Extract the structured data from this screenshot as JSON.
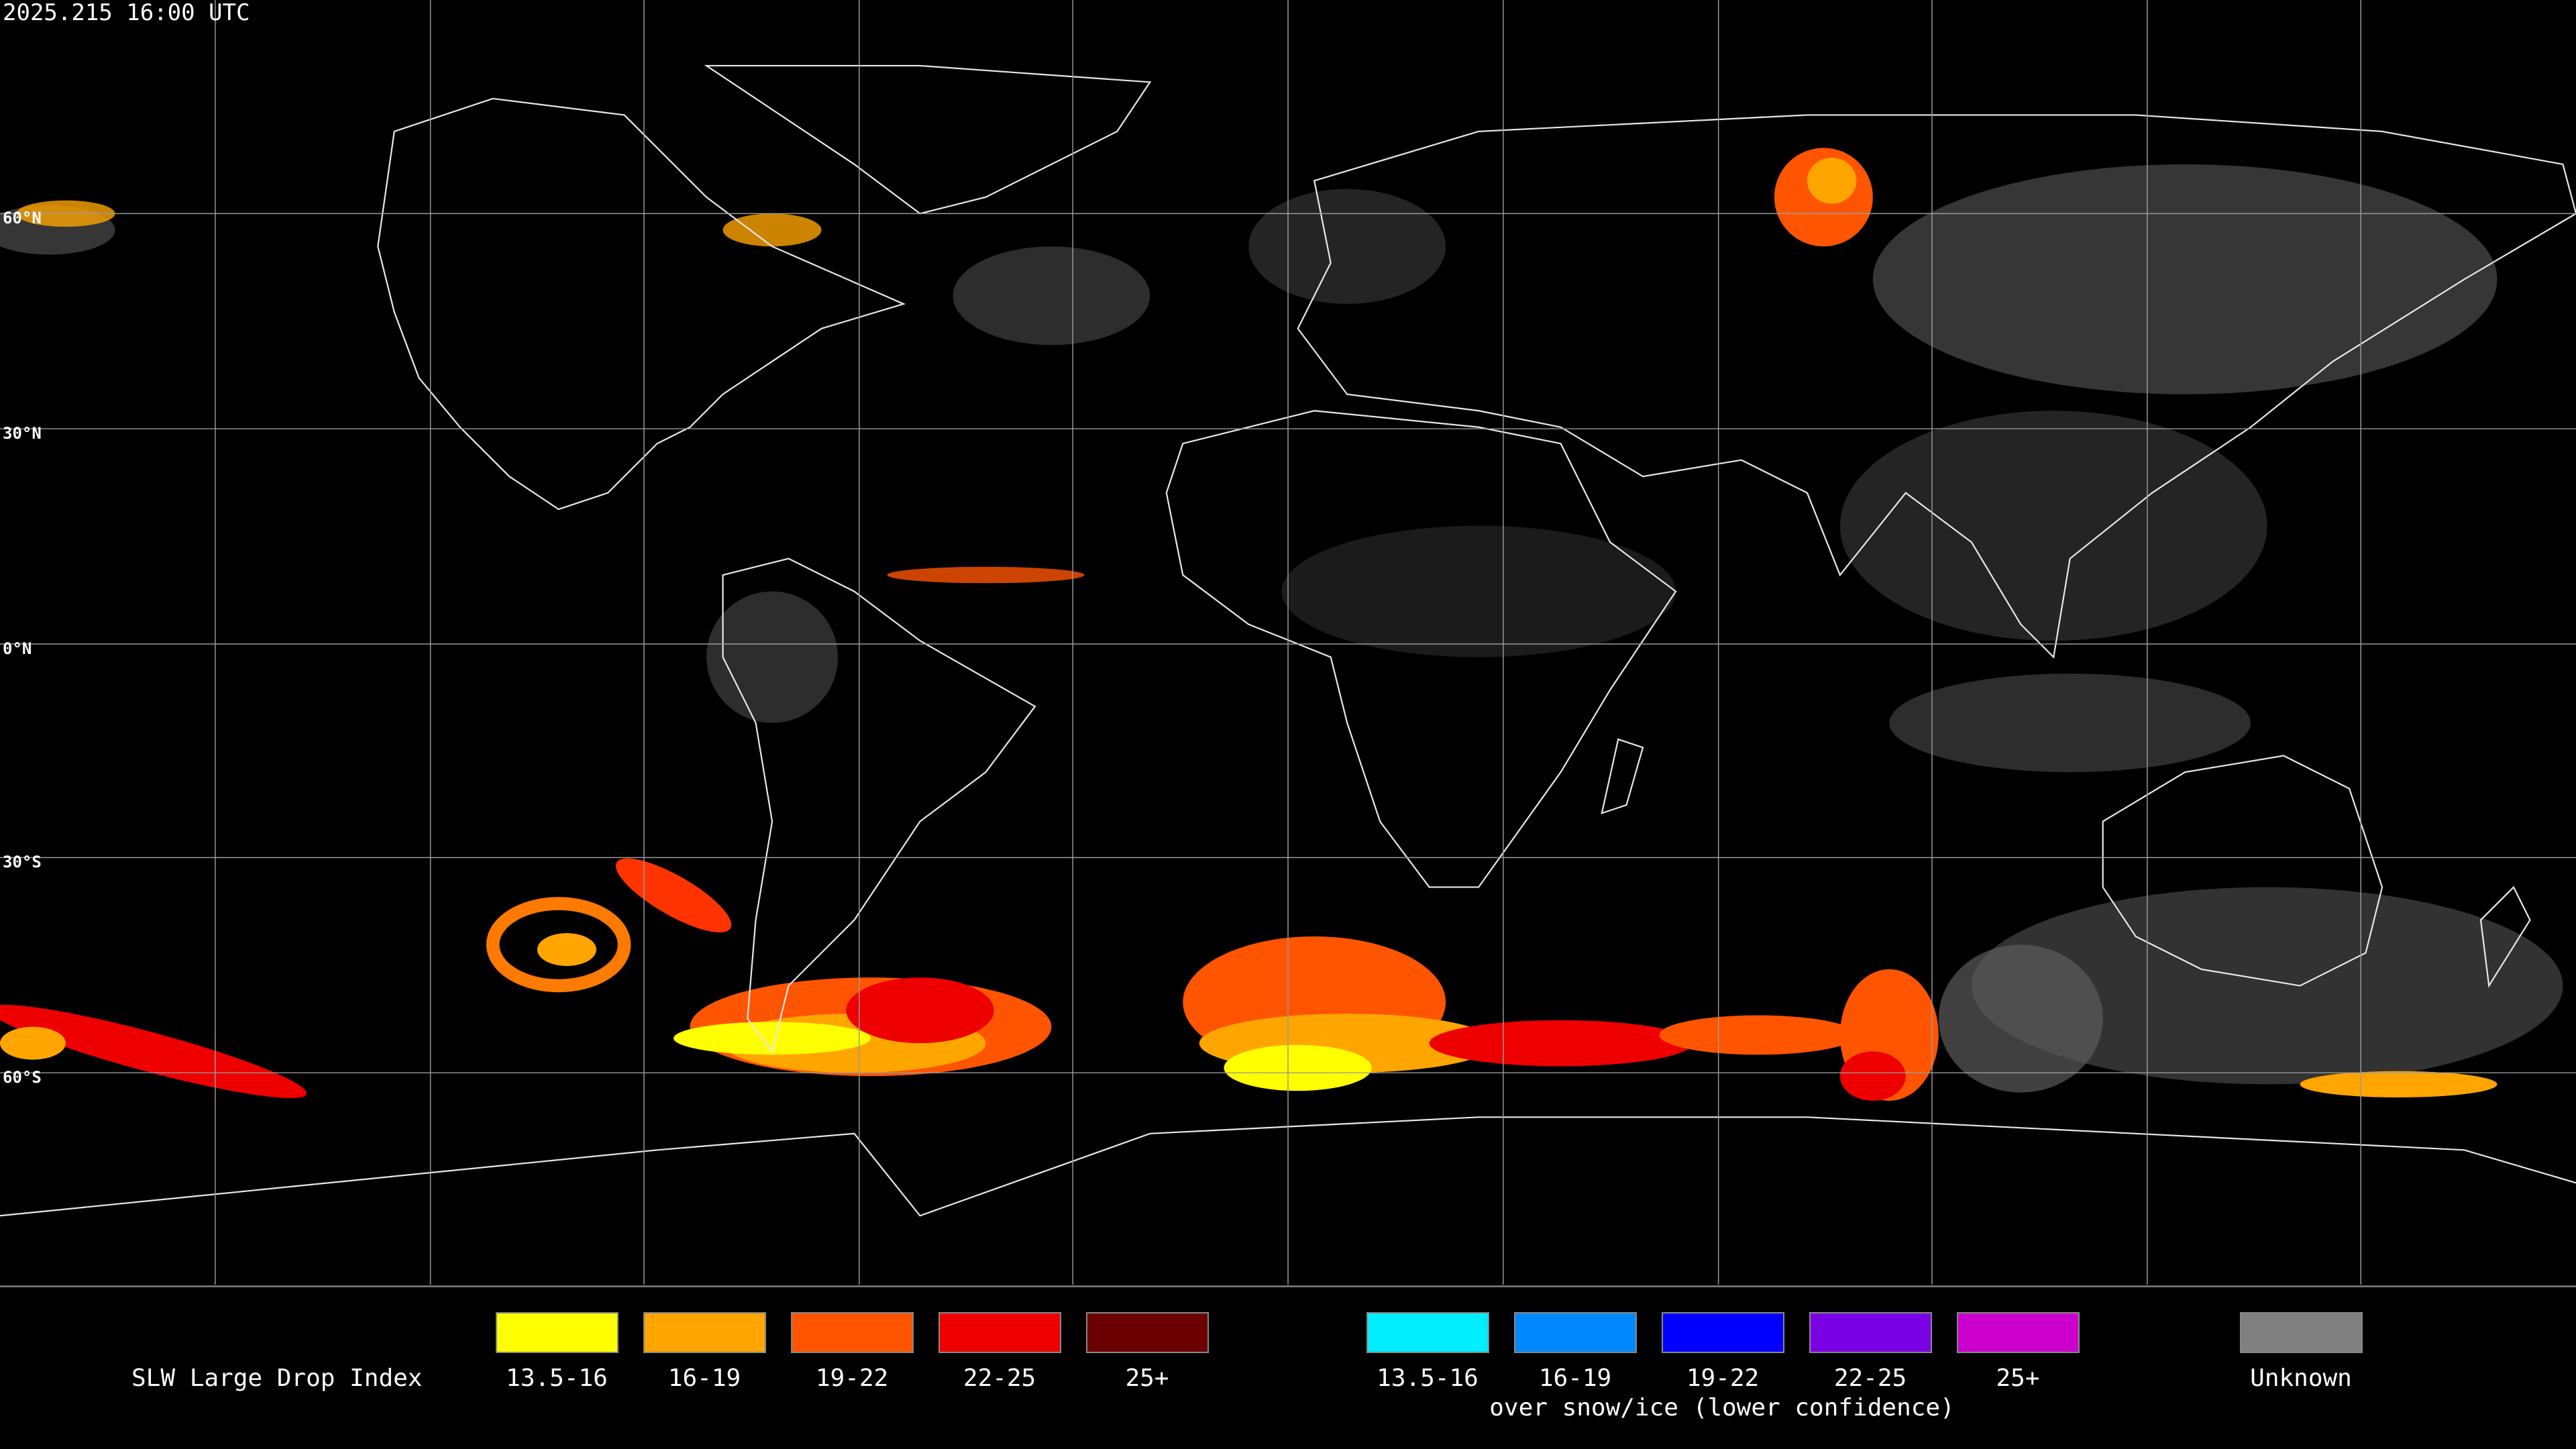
{
  "header": {
    "timestamp": "2025.215 16:00 UTC"
  },
  "latitude_labels": [
    "60°N",
    "30°N",
    "0°N",
    "30°S",
    "60°S"
  ],
  "legend": {
    "title": "SLW Large Drop Index",
    "items": [
      {
        "label": "13.5-16",
        "color": "#ffff00"
      },
      {
        "label": "16-19",
        "color": "#ffa500"
      },
      {
        "label": "19-22",
        "color": "#ff5500"
      },
      {
        "label": "22-25",
        "color": "#ee0000"
      },
      {
        "label": "25+",
        "color": "#6b0000"
      }
    ],
    "snow_items": [
      {
        "label": "13.5-16",
        "color": "#00eeff"
      },
      {
        "label": "16-19",
        "color": "#0088ff"
      },
      {
        "label": "19-22",
        "color": "#0000ff"
      },
      {
        "label": "22-25",
        "color": "#7a00e6"
      },
      {
        "label": "25+",
        "color": "#cc00cc"
      }
    ],
    "snow_note": "over snow/ice (lower confidence)",
    "unknown": {
      "label": "Unknown",
      "color": "#808080"
    }
  }
}
